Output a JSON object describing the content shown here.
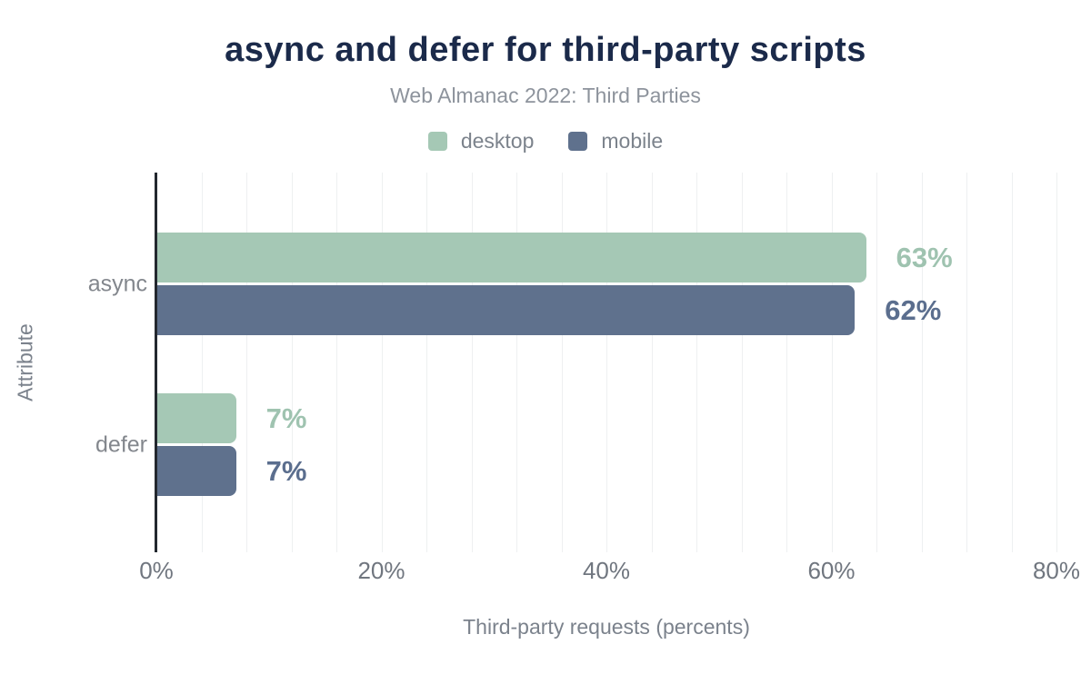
{
  "chart_data": {
    "type": "bar",
    "orientation": "horizontal",
    "title": "async and defer for third-party scripts",
    "subtitle": "Web Almanac 2022: Third Parties",
    "categories": [
      "async",
      "defer"
    ],
    "series": [
      {
        "name": "desktop",
        "color": "#a5c8b5",
        "label_color": "#9fc3b0",
        "values": [
          63,
          7
        ],
        "labels": [
          "63%",
          "7%"
        ]
      },
      {
        "name": "mobile",
        "color": "#5f718d",
        "label_color": "#5b6e8e",
        "values": [
          62,
          7
        ],
        "labels": [
          "62%",
          "7%"
        ]
      }
    ],
    "value_suffix": "%",
    "xlabel": "Third-party requests (percents)",
    "ylabel": "Attribute",
    "xlim": [
      0,
      80
    ],
    "x_ticks": [
      0,
      20,
      40,
      60,
      80
    ],
    "x_tick_labels": [
      "0%",
      "20%",
      "40%",
      "60%",
      "80%"
    ],
    "minor_grid_step": 4,
    "grid": "vertical-minor",
    "legend_position": "top"
  },
  "colors": {
    "background": "#ffffff",
    "title": "#1b2a4a",
    "subtitle": "#8d939c",
    "legend_text": "#7c838c",
    "category_text": "#83878d",
    "tick_text": "#70767f",
    "axis_title_text": "#7b828c",
    "gridline": "#eef0f1",
    "axis_line": "#23282f"
  }
}
